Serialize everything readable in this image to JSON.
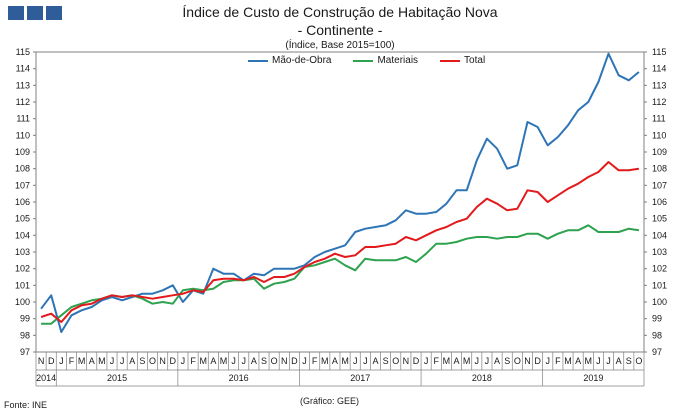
{
  "header": {
    "title": "Índice de Custo de Construção de Habitação Nova",
    "subtitle": "- Continente -",
    "note": "(Índice, Base 2015=100)"
  },
  "footer": {
    "source": "Fonte: INE",
    "credit": "(Gráfico: GEE)"
  },
  "chart_data": {
    "type": "line",
    "ylim": [
      97,
      115
    ],
    "yticks": [
      97,
      98,
      99,
      100,
      101,
      102,
      103,
      104,
      105,
      106,
      107,
      108,
      109,
      110,
      111,
      112,
      113,
      114,
      115
    ],
    "month_labels": [
      "N",
      "D",
      "J",
      "F",
      "M",
      "A",
      "M",
      "J",
      "J",
      "A",
      "S",
      "O",
      "N",
      "D",
      "J",
      "F",
      "M",
      "A",
      "M",
      "J",
      "J",
      "A",
      "S",
      "O",
      "N",
      "D",
      "J",
      "F",
      "M",
      "A",
      "M",
      "J",
      "J",
      "A",
      "S",
      "O",
      "N",
      "D",
      "J",
      "F",
      "M",
      "A",
      "M",
      "J",
      "J",
      "A",
      "S",
      "O",
      "N",
      "D",
      "J",
      "F",
      "M",
      "A",
      "M",
      "J",
      "J",
      "A",
      "S",
      "O"
    ],
    "year_labels": [
      {
        "label": "2014",
        "start": 0,
        "end": 1
      },
      {
        "label": "2015",
        "start": 2,
        "end": 13
      },
      {
        "label": "2016",
        "start": 14,
        "end": 25
      },
      {
        "label": "2017",
        "start": 26,
        "end": 37
      },
      {
        "label": "2018",
        "start": 38,
        "end": 49
      },
      {
        "label": "2019",
        "start": 50,
        "end": 59
      }
    ],
    "legend_position": "top",
    "series": [
      {
        "name": "Mão-de-Obra",
        "color": "#2e75b6",
        "values": [
          99.6,
          100.4,
          98.2,
          99.2,
          99.5,
          99.7,
          100.1,
          100.3,
          100.1,
          100.3,
          100.5,
          100.5,
          100.7,
          101.0,
          100.0,
          100.7,
          100.5,
          102.0,
          101.7,
          101.7,
          101.3,
          101.7,
          101.6,
          102.0,
          102.0,
          102.0,
          102.2,
          102.7,
          103.0,
          103.2,
          103.4,
          104.2,
          104.4,
          104.5,
          104.6,
          104.9,
          105.5,
          105.3,
          105.3,
          105.4,
          105.9,
          106.7,
          106.7,
          108.5,
          109.8,
          109.2,
          108.0,
          108.2,
          110.8,
          110.5,
          109.4,
          109.9,
          110.6,
          111.5,
          112.0,
          113.2,
          114.9,
          113.6,
          113.3,
          113.8
        ]
      },
      {
        "name": "Materiais",
        "color": "#2ea24e",
        "values": [
          98.7,
          98.7,
          99.2,
          99.7,
          99.9,
          100.1,
          100.2,
          100.4,
          100.3,
          100.4,
          100.2,
          99.9,
          100.0,
          99.9,
          100.7,
          100.8,
          100.7,
          100.8,
          101.2,
          101.3,
          101.3,
          101.4,
          100.8,
          101.1,
          101.2,
          101.4,
          102.1,
          102.2,
          102.4,
          102.6,
          102.2,
          101.9,
          102.6,
          102.5,
          102.5,
          102.5,
          102.7,
          102.4,
          102.9,
          103.5,
          103.5,
          103.6,
          103.8,
          103.9,
          103.9,
          103.8,
          103.9,
          103.9,
          104.1,
          104.1,
          103.8,
          104.1,
          104.3,
          104.3,
          104.6,
          104.2,
          104.2,
          104.2,
          104.4,
          104.3
        ]
      },
      {
        "name": "Total",
        "color": "#e31a1c",
        "values": [
          99.1,
          99.3,
          98.8,
          99.5,
          99.8,
          99.9,
          100.2,
          100.4,
          100.3,
          100.4,
          100.3,
          100.2,
          100.3,
          100.4,
          100.5,
          100.7,
          100.6,
          101.3,
          101.4,
          101.4,
          101.3,
          101.5,
          101.2,
          101.5,
          101.5,
          101.7,
          102.1,
          102.4,
          102.6,
          102.9,
          102.7,
          102.8,
          103.3,
          103.3,
          103.4,
          103.5,
          103.9,
          103.7,
          104.0,
          104.3,
          104.5,
          104.8,
          105.0,
          105.7,
          106.2,
          105.9,
          105.5,
          105.6,
          106.7,
          106.6,
          106.0,
          106.4,
          106.8,
          107.1,
          107.5,
          107.8,
          108.4,
          107.9,
          107.9,
          108.0
        ]
      }
    ]
  }
}
